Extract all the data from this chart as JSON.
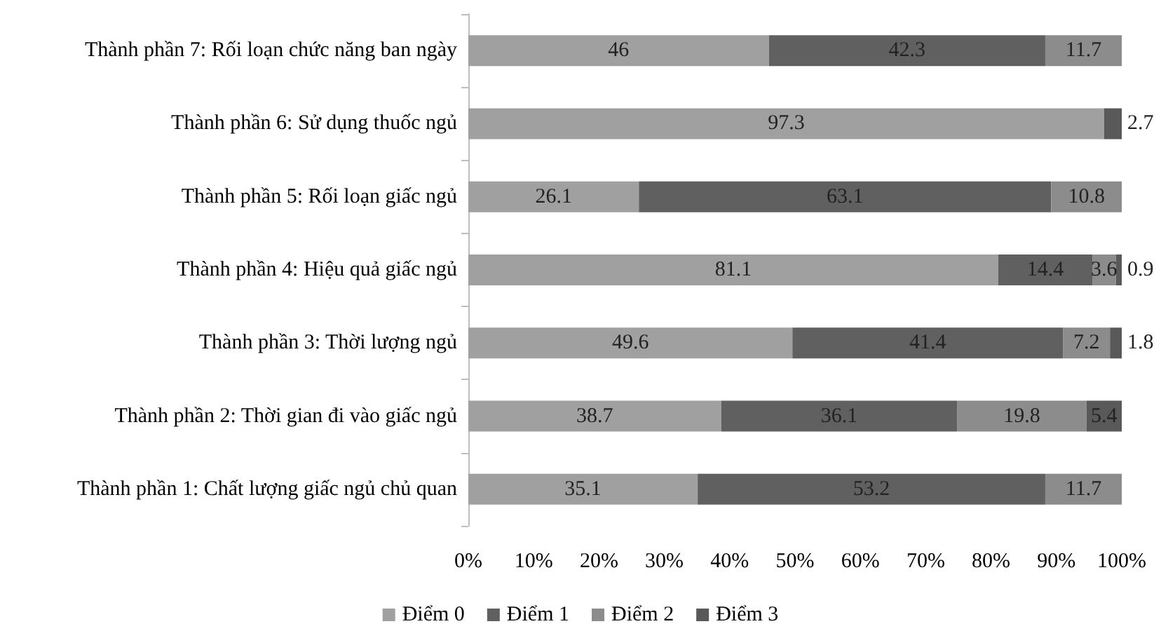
{
  "chart_data": {
    "type": "bar",
    "orientation": "horizontal",
    "stacked": true,
    "data_labels": true,
    "grid": false,
    "legend": "bottom",
    "categories": [
      "Thành phần 7: Rối loạn chức năng ban ngày",
      "Thành phần 6: Sử dụng thuốc ngủ",
      "Thành phần 5: Rối loạn giấc ngủ",
      "Thành phần 4: Hiệu quả giấc ngủ",
      "Thành phần 3: Thời lượng ngủ",
      "Thành phần 2: Thời gian đi vào giấc ngủ",
      "Thành phần 1: Chất lượng giấc ngủ chủ quan"
    ],
    "series": [
      {
        "name": "Điểm 0",
        "color": "#a0a0a0",
        "values": [
          46,
          97.3,
          26.1,
          81.1,
          49.6,
          38.7,
          35.1
        ]
      },
      {
        "name": "Điểm 1",
        "color": "#606060",
        "values": [
          42.3,
          null,
          63.1,
          14.4,
          41.4,
          36.1,
          53.2
        ]
      },
      {
        "name": "Điểm 2",
        "color": "#8c8c8c",
        "values": [
          11.7,
          null,
          10.8,
          3.6,
          7.2,
          19.8,
          11.7
        ]
      },
      {
        "name": "Điểm 3",
        "color": "#595959",
        "values": [
          null,
          2.7,
          null,
          0.9,
          1.8,
          5.4,
          null
        ]
      }
    ],
    "xlim": [
      0,
      100
    ],
    "xticks": [
      {
        "value": 0,
        "label": "0%"
      },
      {
        "value": 10,
        "label": "10%"
      },
      {
        "value": 20,
        "label": "20%"
      },
      {
        "value": 30,
        "label": "30%"
      },
      {
        "value": 40,
        "label": "40%"
      },
      {
        "value": 50,
        "label": "50%"
      },
      {
        "value": 60,
        "label": "60%"
      },
      {
        "value": 70,
        "label": "70%"
      },
      {
        "value": 80,
        "label": "80%"
      },
      {
        "value": 90,
        "label": "90%"
      },
      {
        "value": 100,
        "label": "100%"
      }
    ]
  }
}
